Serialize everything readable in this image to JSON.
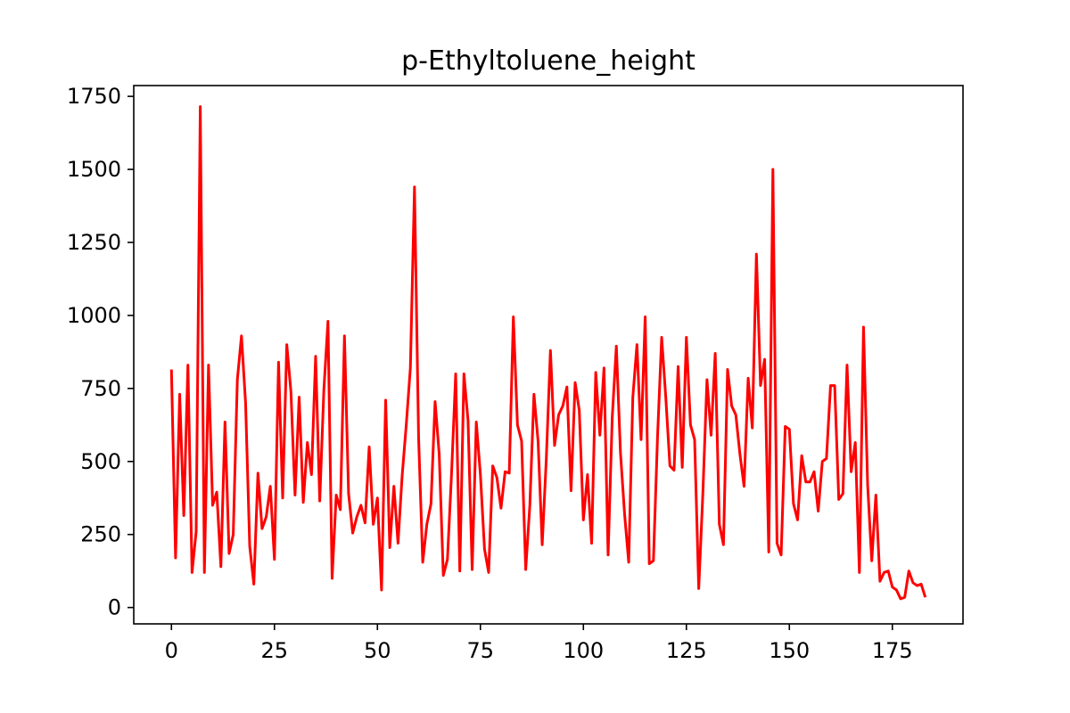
{
  "chart_data": {
    "type": "line",
    "title": "p-Ethyltoluene_height",
    "xlabel": "",
    "ylabel": "",
    "xlim": [
      -9.15,
      192.15
    ],
    "ylim": [
      -56,
      1787
    ],
    "xticks": [
      0,
      25,
      50,
      75,
      100,
      125,
      150,
      175
    ],
    "yticks": [
      0,
      250,
      500,
      750,
      1000,
      1250,
      1500,
      1750
    ],
    "grid": false,
    "series": [
      {
        "color": "#ff0000",
        "x": [
          0,
          1,
          2,
          3,
          4,
          5,
          6,
          7,
          8,
          9,
          10,
          11,
          12,
          13,
          14,
          15,
          16,
          17,
          18,
          19,
          20,
          21,
          22,
          23,
          24,
          25,
          26,
          27,
          28,
          29,
          30,
          31,
          32,
          33,
          34,
          35,
          36,
          37,
          38,
          39,
          40,
          41,
          42,
          43,
          44,
          45,
          46,
          47,
          48,
          49,
          50,
          51,
          52,
          53,
          54,
          55,
          56,
          57,
          58,
          59,
          60,
          61,
          62,
          63,
          64,
          65,
          66,
          67,
          68,
          69,
          70,
          71,
          72,
          73,
          74,
          75,
          76,
          77,
          78,
          79,
          80,
          81,
          82,
          83,
          84,
          85,
          86,
          87,
          88,
          89,
          90,
          91,
          92,
          93,
          94,
          95,
          96,
          97,
          98,
          99,
          100,
          101,
          102,
          103,
          104,
          105,
          106,
          107,
          108,
          109,
          110,
          111,
          112,
          113,
          114,
          115,
          116,
          117,
          118,
          119,
          120,
          121,
          122,
          123,
          124,
          125,
          126,
          127,
          128,
          129,
          130,
          131,
          132,
          133,
          134,
          135,
          136,
          137,
          138,
          139,
          140,
          141,
          142,
          143,
          144,
          145,
          146,
          147,
          148,
          149,
          150,
          151,
          152,
          153,
          154,
          155,
          156,
          157,
          158,
          159,
          160,
          161,
          162,
          163,
          164,
          165,
          166,
          167,
          168,
          169,
          170,
          171,
          172,
          173,
          174,
          175,
          176,
          177,
          178,
          179,
          180,
          181,
          182,
          183
        ],
        "y": [
          815,
          170,
          730,
          315,
          830,
          120,
          260,
          1715,
          120,
          830,
          350,
          395,
          140,
          635,
          185,
          250,
          780,
          930,
          700,
          210,
          80,
          460,
          270,
          310,
          415,
          165,
          840,
          375,
          900,
          740,
          385,
          720,
          360,
          565,
          455,
          860,
          365,
          745,
          980,
          100,
          385,
          335,
          930,
          390,
          255,
          310,
          350,
          290,
          550,
          285,
          375,
          60,
          710,
          205,
          415,
          220,
          450,
          625,
          820,
          1440,
          580,
          155,
          285,
          355,
          705,
          525,
          110,
          165,
          460,
          800,
          125,
          800,
          640,
          130,
          635,
          455,
          200,
          120,
          485,
          445,
          340,
          465,
          460,
          995,
          625,
          570,
          130,
          350,
          730,
          570,
          215,
          510,
          880,
          555,
          660,
          690,
          755,
          400,
          770,
          675,
          300,
          455,
          220,
          805,
          590,
          820,
          180,
          650,
          895,
          530,
          320,
          155,
          720,
          900,
          575,
          995,
          150,
          160,
          585,
          925,
          720,
          485,
          470,
          825,
          480,
          925,
          625,
          575,
          65,
          390,
          780,
          590,
          870,
          285,
          215,
          815,
          690,
          660,
          525,
          415,
          785,
          615,
          1210,
          760,
          850,
          190,
          1500,
          220,
          180,
          620,
          610,
          355,
          300,
          520,
          430,
          430,
          465,
          330,
          500,
          510,
          760,
          760,
          370,
          390,
          830,
          465,
          565,
          120,
          960,
          420,
          160,
          385,
          90,
          120,
          125,
          70,
          60,
          30,
          35,
          125,
          85,
          75,
          80,
          35
        ]
      }
    ]
  }
}
